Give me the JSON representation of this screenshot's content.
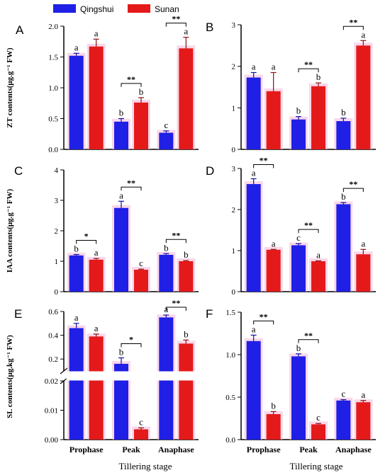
{
  "colors": {
    "qingshui": "#1f1fe6",
    "sunan": "#e41a1a",
    "highlight": "#f4b6d8",
    "axis": "#000000"
  },
  "legend": {
    "series": [
      "Qingshui",
      "Sunan"
    ]
  },
  "x_axis_title": "Tillering stage",
  "categories": [
    "Prophase",
    "Peak",
    "Anaphase"
  ],
  "chart_data": [
    {
      "type": "bar",
      "panel": "A",
      "ylabel": "ZT contents(μg.g⁻¹ FW)",
      "categories": [
        "Prophase",
        "Peak",
        "Anaphase"
      ],
      "ylim": [
        0,
        2.0
      ],
      "yticks": [
        0,
        0.5,
        1.0,
        1.5,
        2.0
      ],
      "ytick_labels": [
        "0.0",
        "0.5",
        "1.0",
        "1.5",
        "2.0"
      ],
      "series": [
        {
          "name": "Qingshui",
          "values": [
            1.52,
            0.45,
            0.27
          ],
          "errors": [
            0.04,
            0.05,
            0.03
          ],
          "letters": [
            "a",
            "b",
            "c"
          ]
        },
        {
          "name": "Sunan",
          "values": [
            1.67,
            0.76,
            1.64
          ],
          "errors": [
            0.12,
            0.08,
            0.18
          ],
          "letters": [
            "a",
            "b",
            "a"
          ]
        }
      ],
      "significance": [
        "",
        "**",
        "**"
      ]
    },
    {
      "type": "bar",
      "panel": "B",
      "ylabel": "",
      "categories": [
        "Prophase",
        "Peak",
        "Anaphase"
      ],
      "ylim": [
        0,
        3
      ],
      "yticks": [
        0,
        1,
        2,
        3
      ],
      "ytick_labels": [
        "0",
        "1",
        "2",
        "3"
      ],
      "series": [
        {
          "name": "Qingshui",
          "values": [
            1.73,
            0.72,
            0.68
          ],
          "errors": [
            0.12,
            0.07,
            0.07
          ],
          "letters": [
            "a",
            "b",
            "b"
          ]
        },
        {
          "name": "Sunan",
          "values": [
            1.4,
            1.52,
            2.5
          ],
          "errors": [
            0.45,
            0.08,
            0.12
          ],
          "letters": [
            "a",
            "b",
            "a"
          ]
        }
      ],
      "significance": [
        "",
        "**",
        "**"
      ]
    },
    {
      "type": "bar",
      "panel": "C",
      "ylabel": "IAA contents(μg.g⁻¹ FW)",
      "categories": [
        "Prophase",
        "Peak",
        "Anaphase"
      ],
      "ylim": [
        0,
        4
      ],
      "yticks": [
        0,
        1,
        2,
        3,
        4
      ],
      "ytick_labels": [
        "0",
        "1",
        "2",
        "3",
        "4"
      ],
      "series": [
        {
          "name": "Qingshui",
          "values": [
            1.19,
            2.75,
            1.21
          ],
          "errors": [
            0.03,
            0.22,
            0.04
          ],
          "letters": [
            "b",
            "a",
            "b"
          ]
        },
        {
          "name": "Sunan",
          "values": [
            1.05,
            0.72,
            1.0
          ],
          "errors": [
            0.04,
            0.02,
            0.02
          ],
          "letters": [
            "a",
            "c",
            "b"
          ]
        }
      ],
      "significance": [
        "*",
        "**",
        "**"
      ]
    },
    {
      "type": "bar",
      "panel": "D",
      "ylabel": "",
      "categories": [
        "Prophase",
        "Peak",
        "Anaphase"
      ],
      "ylim": [
        0,
        3
      ],
      "yticks": [
        0,
        1,
        2,
        3
      ],
      "ytick_labels": [
        "0",
        "1",
        "2",
        "3"
      ],
      "series": [
        {
          "name": "Qingshui",
          "values": [
            2.62,
            1.13,
            2.13
          ],
          "errors": [
            0.13,
            0.04,
            0.04
          ],
          "letters": [
            "a",
            "c",
            "b"
          ]
        },
        {
          "name": "Sunan",
          "values": [
            1.02,
            0.74,
            0.91
          ],
          "errors": [
            0.01,
            0.01,
            0.12
          ],
          "letters": [
            "a",
            "a",
            "a"
          ]
        }
      ],
      "significance": [
        "**",
        "**",
        "**"
      ]
    },
    {
      "type": "bar",
      "panel": "E",
      "ylabel": "SL contents(μg.kg⁻¹ FW)",
      "categories": [
        "Prophase",
        "Peak",
        "Anaphase"
      ],
      "broken_axis": true,
      "ylim_lower": [
        0,
        0.02
      ],
      "yticks_lower": [
        0,
        0.01,
        0.02
      ],
      "ytick_labels_lower": [
        "0.00",
        "0.01",
        "0.02"
      ],
      "ylim_upper": [
        0.1,
        0.6
      ],
      "yticks_upper": [
        0.2,
        0.4,
        0.6
      ],
      "ytick_labels_upper": [
        "0.2",
        "0.4",
        "0.6"
      ],
      "series": [
        {
          "name": "Qingshui",
          "values": [
            0.46,
            0.16,
            0.55
          ],
          "errors": [
            0.04,
            0.05,
            0.02
          ],
          "letters": [
            "a",
            "b",
            "a"
          ]
        },
        {
          "name": "Sunan",
          "values": [
            0.39,
            0.0035,
            0.33
          ],
          "errors": [
            0.02,
            0.0005,
            0.03
          ],
          "letters": [
            "a",
            "c",
            "b"
          ]
        }
      ],
      "significance": [
        "",
        "*",
        "**"
      ]
    },
    {
      "type": "bar",
      "panel": "F",
      "ylabel": "",
      "categories": [
        "Prophase",
        "Peak",
        "Anaphase"
      ],
      "ylim": [
        0,
        1.5
      ],
      "yticks": [
        0,
        0.5,
        1.0,
        1.5
      ],
      "ytick_labels": [
        "0.0",
        "0.5",
        "1.0",
        "1.5"
      ],
      "series": [
        {
          "name": "Qingshui",
          "values": [
            1.16,
            0.98,
            0.46
          ],
          "errors": [
            0.07,
            0.03,
            0.01
          ],
          "letters": [
            "a",
            "b",
            "c"
          ]
        },
        {
          "name": "Sunan",
          "values": [
            0.3,
            0.18,
            0.44
          ],
          "errors": [
            0.03,
            0.01,
            0.02
          ],
          "letters": [
            "b",
            "c",
            "a"
          ]
        }
      ],
      "significance": [
        "**",
        "**",
        ""
      ]
    }
  ]
}
